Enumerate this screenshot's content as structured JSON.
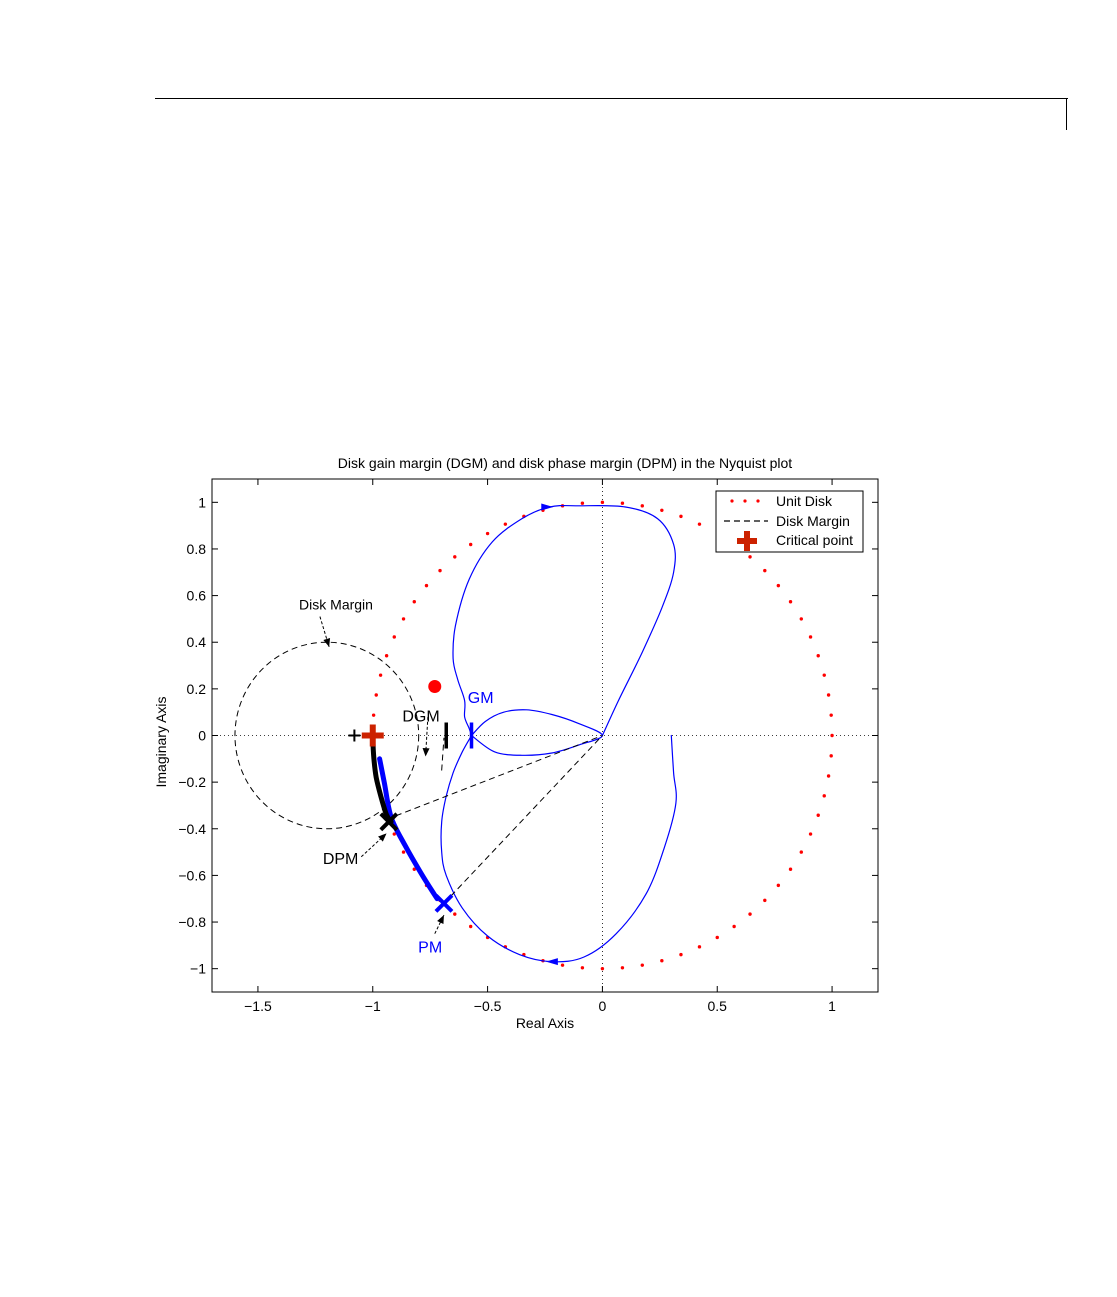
{
  "chart_data": {
    "type": "line",
    "title": "Disk gain margin (DGM) and disk phase margin (DPM) in the Nyquist plot",
    "xlabel": "Real Axis",
    "ylabel": "Imaginary Axis",
    "xlim": [
      -1.7,
      1.2
    ],
    "ylim": [
      -1.1,
      1.1
    ],
    "xticks": [
      -1.5,
      -1,
      -0.5,
      0,
      0.5,
      1
    ],
    "xtick_labels": [
      "−1.5",
      "−1",
      "−0.5",
      "0",
      "0.5",
      "1"
    ],
    "yticks": [
      -1,
      -0.8,
      -0.6,
      -0.4,
      -0.2,
      0,
      0.2,
      0.4,
      0.6,
      0.8,
      1
    ],
    "ytick_labels": [
      "−1",
      "−0.8",
      "−0.6",
      "−0.4",
      "−0.2",
      "0",
      "0.2",
      "0.4",
      "0.6",
      "0.8",
      "1"
    ],
    "grid": "dotted axes lines through origin",
    "legend": {
      "placement": "top-right",
      "entries": [
        {
          "label": "Unit Disk",
          "style": "red dotted"
        },
        {
          "label": "Disk Margin",
          "style": "black dashed"
        },
        {
          "label": "Critical point",
          "style": "red plus marker"
        }
      ]
    },
    "series": [
      {
        "name": "Unit Disk",
        "kind": "circle",
        "center": [
          0,
          0
        ],
        "radius": 1,
        "color": "#ff0000"
      },
      {
        "name": "Disk Margin",
        "kind": "circle",
        "center": [
          -1.2,
          0
        ],
        "radius": 0.4,
        "color": "#000000"
      },
      {
        "name": "Nyquist outer loop (upper)",
        "color": "#0000ff",
        "points": [
          [
            0,
            0
          ],
          [
            0.07,
            0.15
          ],
          [
            0.17,
            0.35
          ],
          [
            0.26,
            0.55
          ],
          [
            0.31,
            0.7
          ],
          [
            0.31,
            0.82
          ],
          [
            0.24,
            0.93
          ],
          [
            0.1,
            0.98
          ],
          [
            -0.1,
            0.985
          ],
          [
            -0.23,
            0.98
          ],
          [
            -0.35,
            0.93
          ],
          [
            -0.48,
            0.83
          ],
          [
            -0.58,
            0.67
          ],
          [
            -0.64,
            0.47
          ],
          [
            -0.65,
            0.33
          ],
          [
            -0.63,
            0.24
          ],
          [
            -0.6,
            0.15
          ],
          [
            -0.6,
            0.08
          ],
          [
            -0.58,
            0.03
          ],
          [
            -0.57,
            0
          ]
        ]
      },
      {
        "name": "Nyquist inner loop",
        "color": "#0000ff",
        "points": [
          [
            -0.57,
            0
          ],
          [
            -0.51,
            0.06
          ],
          [
            -0.43,
            0.1
          ],
          [
            -0.33,
            0.11
          ],
          [
            -0.22,
            0.09
          ],
          [
            -0.1,
            0.05
          ],
          [
            0,
            0
          ],
          [
            -0.1,
            -0.04
          ],
          [
            -0.22,
            -0.075
          ],
          [
            -0.35,
            -0.085
          ],
          [
            -0.47,
            -0.07
          ],
          [
            -0.57,
            0
          ]
        ]
      },
      {
        "name": "Nyquist outer loop (lower)",
        "color": "#0000ff",
        "points": [
          [
            -0.57,
            0
          ],
          [
            -0.61,
            -0.07
          ],
          [
            -0.65,
            -0.16
          ],
          [
            -0.68,
            -0.26
          ],
          [
            -0.7,
            -0.37
          ],
          [
            -0.7,
            -0.5
          ],
          [
            -0.68,
            -0.6
          ],
          [
            -0.61,
            -0.74
          ],
          [
            -0.5,
            -0.86
          ],
          [
            -0.36,
            -0.94
          ],
          [
            -0.22,
            -0.97
          ],
          [
            -0.08,
            -0.95
          ],
          [
            0.06,
            -0.85
          ],
          [
            0.19,
            -0.68
          ],
          [
            0.27,
            -0.48
          ],
          [
            0.32,
            -0.29
          ],
          [
            0.31,
            -0.16
          ],
          [
            0.3,
            0
          ]
        ]
      },
      {
        "name": "PM arc",
        "color": "#0000ff",
        "points": [
          [
            -0.97,
            -0.1
          ],
          [
            -0.95,
            -0.2
          ],
          [
            -0.92,
            -0.35
          ],
          [
            -0.86,
            -0.47
          ],
          [
            -0.79,
            -0.59
          ],
          [
            -0.72,
            -0.7
          ]
        ]
      },
      {
        "name": "DPM arc",
        "color": "#000000",
        "points": [
          [
            -1,
            -0.01
          ],
          [
            -0.995,
            -0.1
          ],
          [
            -0.985,
            -0.18
          ],
          [
            -0.965,
            -0.26
          ],
          [
            -0.94,
            -0.34
          ],
          [
            -0.92,
            -0.37
          ]
        ]
      },
      {
        "name": "Margin construction lines",
        "color": "#000000",
        "points": [
          [
            -0.94,
            -0.36
          ],
          [
            0,
            0
          ],
          [
            -0.69,
            -0.72
          ],
          [
            -0.7,
            -0.15
          ],
          [
            -0.69,
            -0.01
          ]
        ]
      }
    ],
    "markers": [
      {
        "name": "Critical point",
        "x": -1,
        "y": 0,
        "symbol": "plus",
        "color": "#cc2200"
      },
      {
        "name": "Disk margin limit point",
        "x": -1.08,
        "y": 0,
        "symbol": "plus",
        "color": "#000000"
      },
      {
        "name": "Intersection dot",
        "x": -0.73,
        "y": 0.21,
        "symbol": "dot",
        "color": "#ff0000"
      },
      {
        "name": "GM tick",
        "x": -0.57,
        "y": 0,
        "symbol": "vbar",
        "color": "#0000ff"
      },
      {
        "name": "DGM tick",
        "x": -0.68,
        "y": 0,
        "symbol": "vbar",
        "color": "#000000"
      },
      {
        "name": "DPM cross",
        "x": -0.93,
        "y": -0.37,
        "symbol": "x",
        "color": "#000000"
      },
      {
        "name": "PM cross",
        "x": -0.69,
        "y": -0.72,
        "symbol": "x",
        "color": "#0000ff"
      }
    ],
    "annotations": [
      {
        "text": "Disk Margin",
        "x": -1.16,
        "y": 0.54,
        "color": "#000000"
      },
      {
        "text": "DGM",
        "x": -0.79,
        "y": 0.06,
        "color": "#000000"
      },
      {
        "text": "GM",
        "x": -0.53,
        "y": 0.14,
        "color": "#0000ff"
      },
      {
        "text": "DPM",
        "x": -1.14,
        "y": -0.55,
        "color": "#000000"
      },
      {
        "text": "PM",
        "x": -0.75,
        "y": -0.93,
        "color": "#0000ff"
      }
    ],
    "arrows": [
      {
        "from": [
          -1.23,
          0.51
        ],
        "to": [
          -1.19,
          0.38
        ]
      },
      {
        "from": [
          -0.76,
          0.08
        ],
        "to": [
          -0.77,
          -0.09
        ]
      },
      {
        "from": [
          -1.05,
          -0.52
        ],
        "to": [
          -0.94,
          -0.42
        ]
      },
      {
        "from": [
          -0.73,
          -0.85
        ],
        "to": [
          -0.69,
          -0.77
        ]
      }
    ]
  }
}
